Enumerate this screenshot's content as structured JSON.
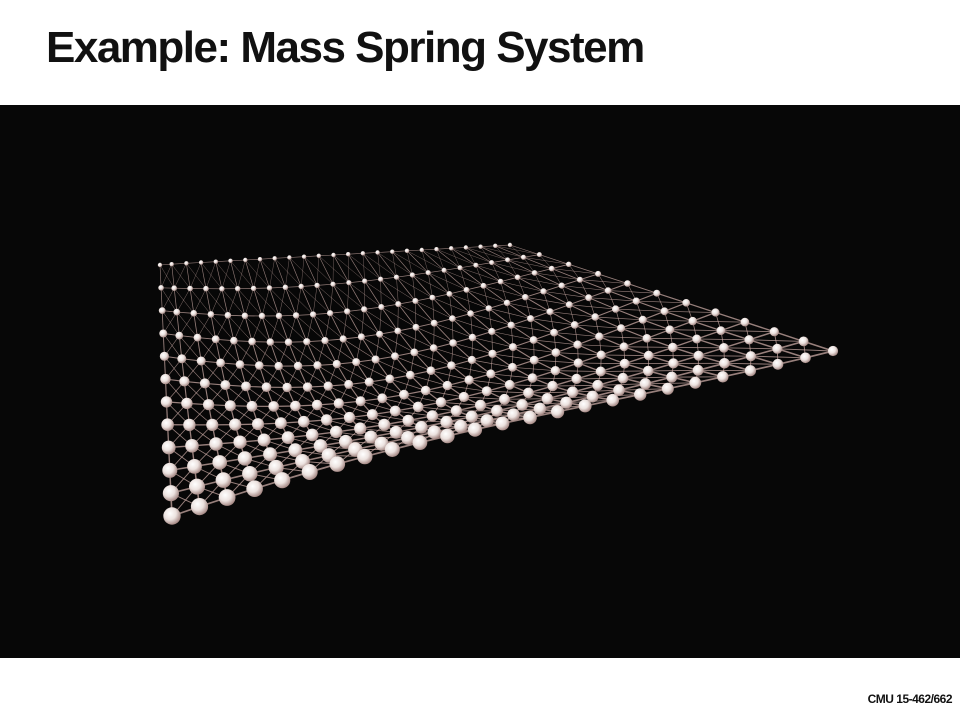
{
  "slide": {
    "title": "Example: Mass Spring System",
    "footer": "CMU 15-462/662"
  },
  "simulation": {
    "figure": "mass-spring cloth mesh rendered in 3D, pinned along one edge and sagging",
    "grid_columns": 25,
    "grid_rows": 12,
    "colors": {
      "background": "#070707",
      "spring": "#c9a9a4",
      "mass": "#f2ecea",
      "mass_shade": "#b89a95"
    }
  }
}
